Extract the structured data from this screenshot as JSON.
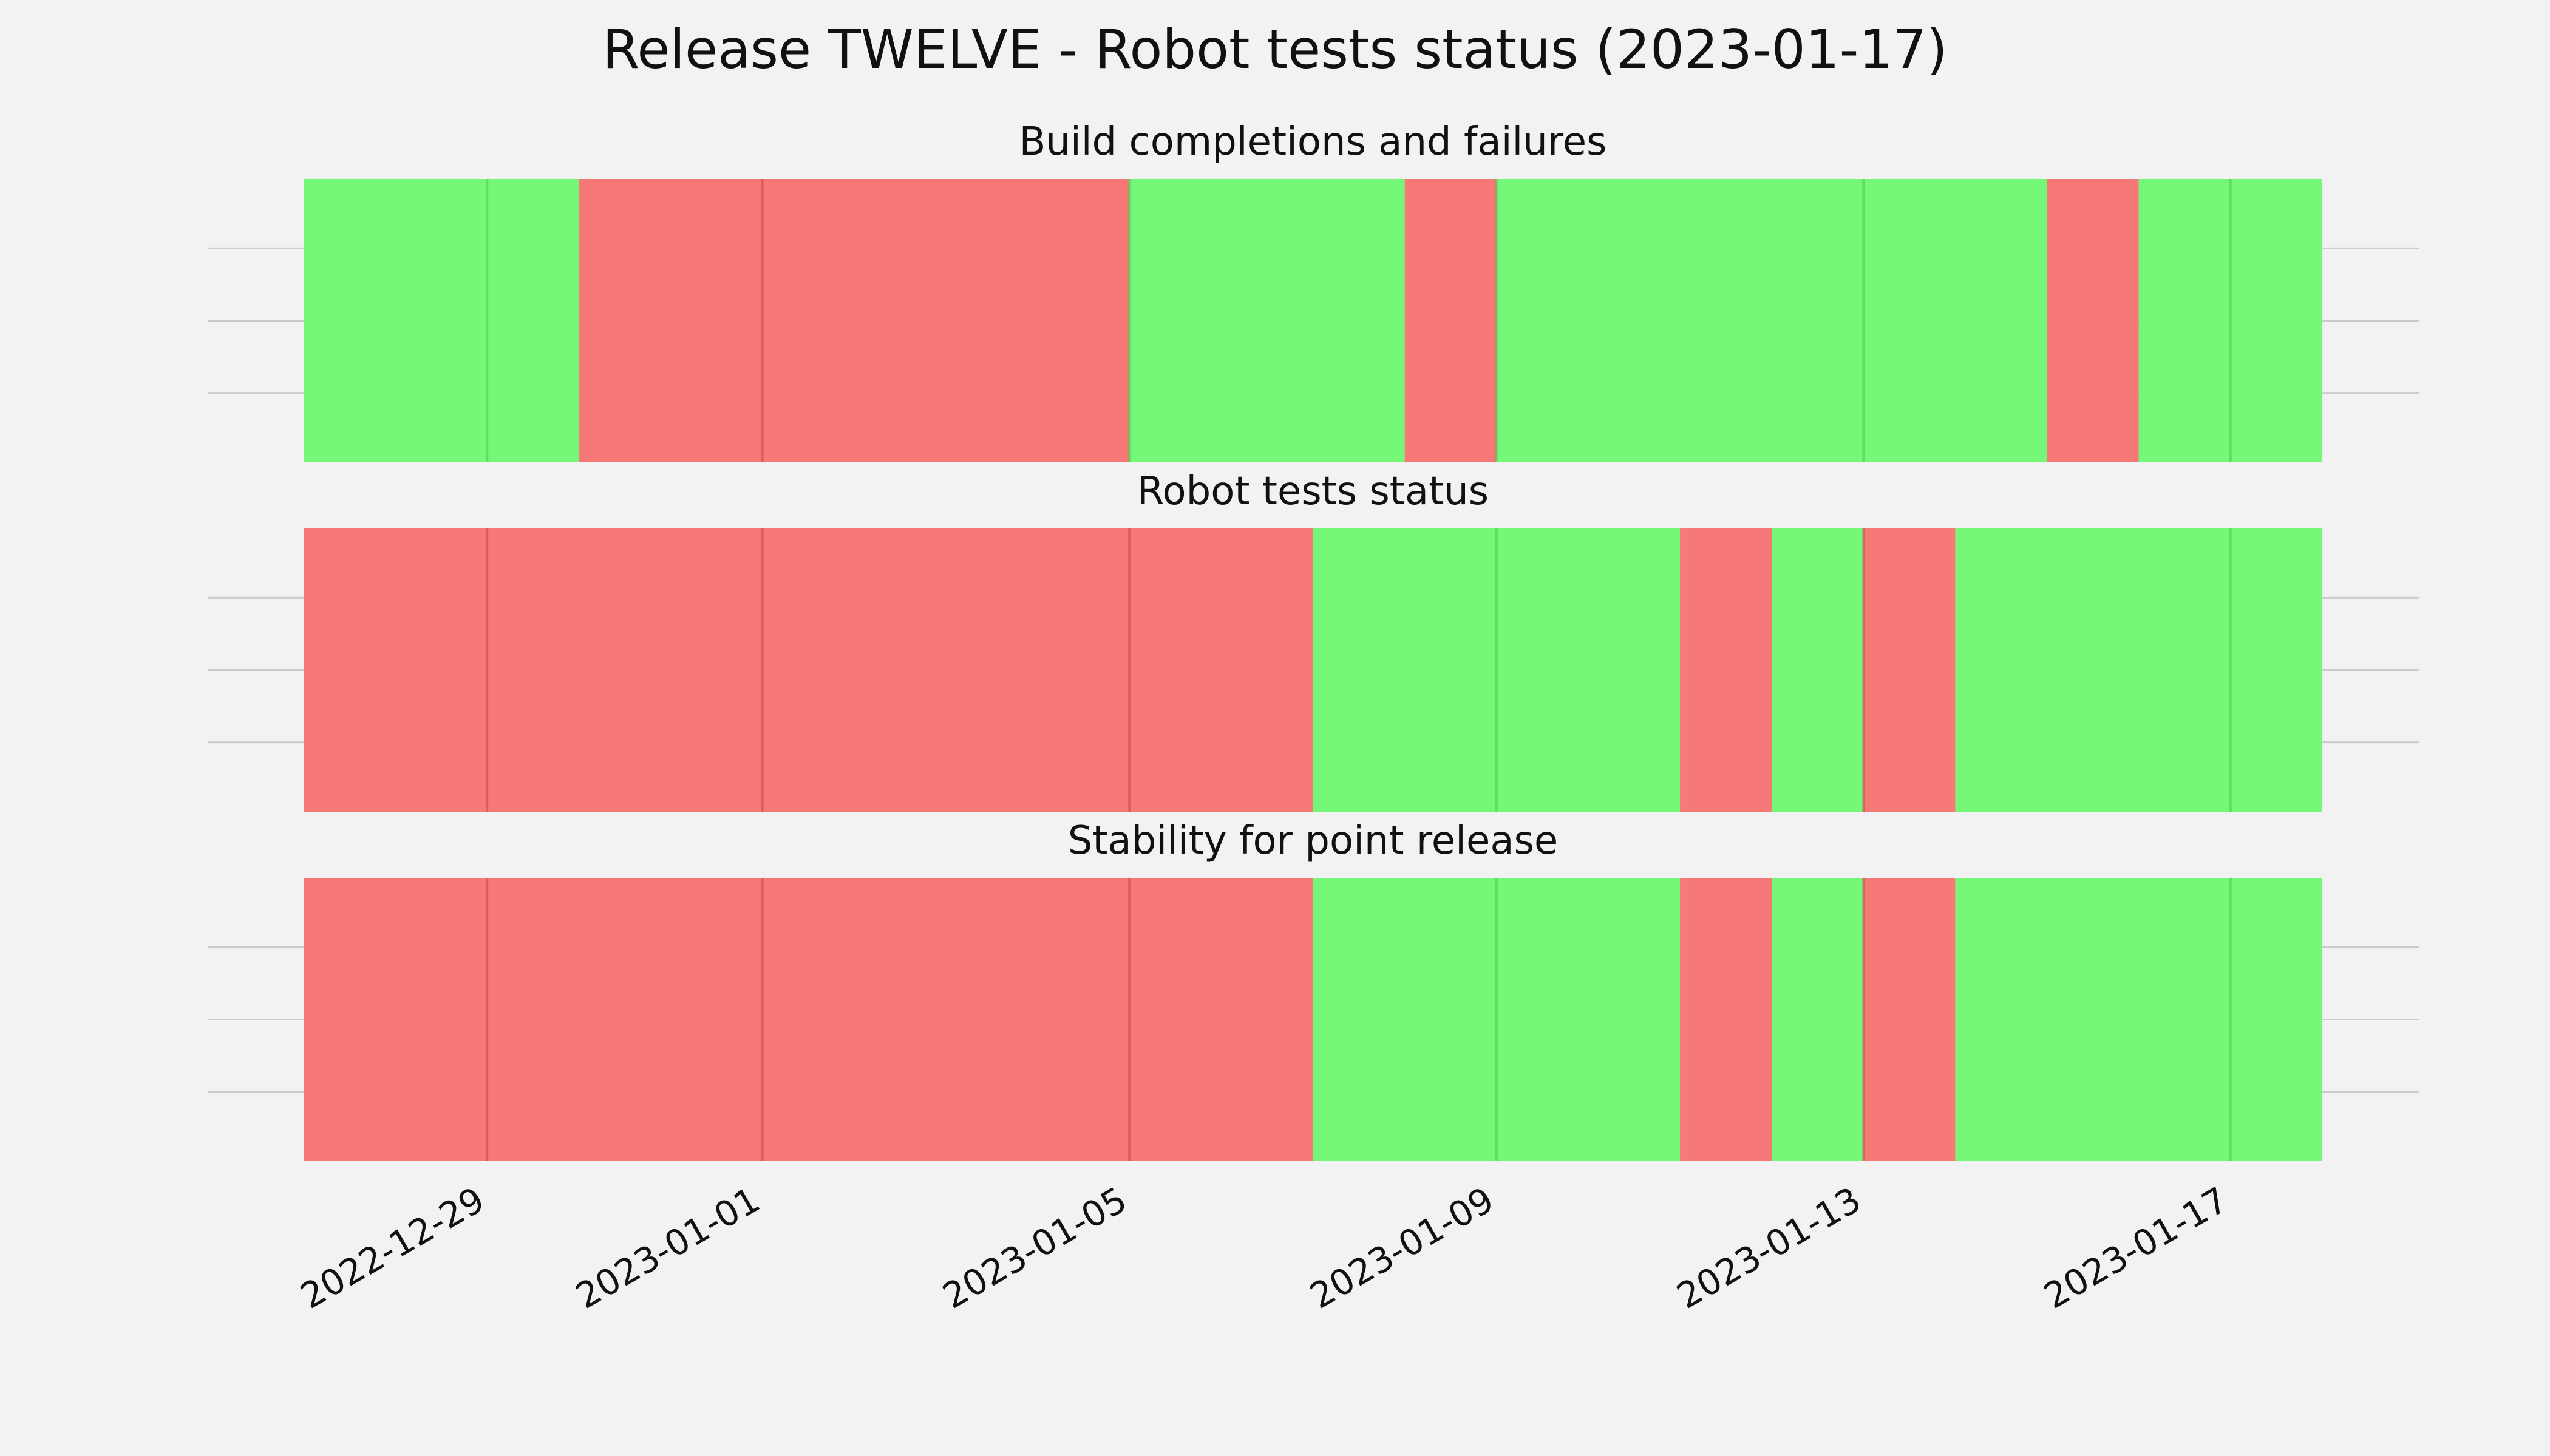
{
  "chart_data": {
    "type": "timeline",
    "title": "Release TWELVE - Robot tests status (2023-01-17)",
    "x_axis": {
      "ticks": [
        "2022-12-29",
        "2023-01-01",
        "2023-01-05",
        "2023-01-09",
        "2023-01-13",
        "2023-01-17"
      ],
      "range": [
        "2022-12-27",
        "2023-01-18"
      ]
    },
    "grid": true,
    "status_colors": {
      "pass": "#75f877",
      "fail": "#f77977"
    },
    "panels": [
      {
        "title": "Build completions and failures",
        "segments": [
          {
            "start": "2022-12-27",
            "end": "2022-12-30",
            "status": "pass"
          },
          {
            "start": "2022-12-30",
            "end": "2023-01-05",
            "status": "fail"
          },
          {
            "start": "2023-01-05",
            "end": "2023-01-08",
            "status": "pass"
          },
          {
            "start": "2023-01-08",
            "end": "2023-01-09",
            "status": "fail"
          },
          {
            "start": "2023-01-09",
            "end": "2023-01-15",
            "status": "pass"
          },
          {
            "start": "2023-01-15",
            "end": "2023-01-16",
            "status": "fail"
          },
          {
            "start": "2023-01-16",
            "end": "2023-01-18",
            "status": "pass"
          }
        ]
      },
      {
        "title": "Robot tests status",
        "segments": [
          {
            "start": "2022-12-27",
            "end": "2023-01-07",
            "status": "fail"
          },
          {
            "start": "2023-01-07",
            "end": "2023-01-11",
            "status": "pass"
          },
          {
            "start": "2023-01-11",
            "end": "2023-01-12",
            "status": "fail"
          },
          {
            "start": "2023-01-12",
            "end": "2023-01-13",
            "status": "pass"
          },
          {
            "start": "2023-01-13",
            "end": "2023-01-14",
            "status": "fail"
          },
          {
            "start": "2023-01-14",
            "end": "2023-01-18",
            "status": "pass"
          }
        ]
      },
      {
        "title": "Stability for point release",
        "segments": [
          {
            "start": "2022-12-27",
            "end": "2023-01-07",
            "status": "fail"
          },
          {
            "start": "2023-01-07",
            "end": "2023-01-11",
            "status": "pass"
          },
          {
            "start": "2023-01-11",
            "end": "2023-01-12",
            "status": "fail"
          },
          {
            "start": "2023-01-12",
            "end": "2023-01-13",
            "status": "pass"
          },
          {
            "start": "2023-01-13",
            "end": "2023-01-14",
            "status": "fail"
          },
          {
            "start": "2023-01-14",
            "end": "2023-01-18",
            "status": "pass"
          }
        ]
      }
    ]
  }
}
